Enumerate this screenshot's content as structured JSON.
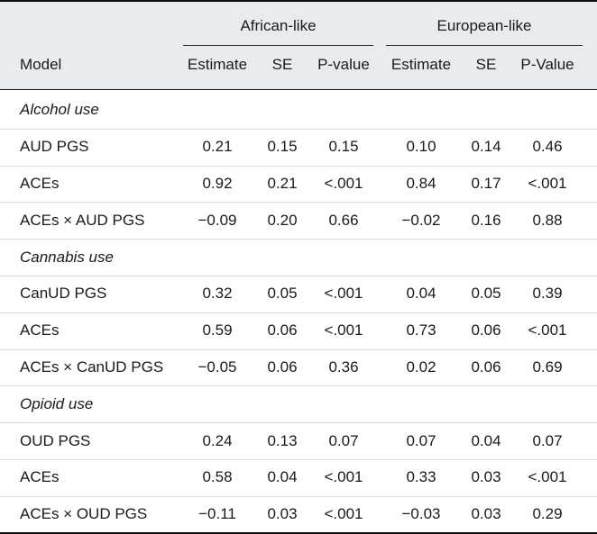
{
  "header": {
    "model_label": "Model",
    "groups": [
      {
        "label": "African-like",
        "cols": [
          "Estimate",
          "SE",
          "P-value"
        ]
      },
      {
        "label": "European-like",
        "cols": [
          "Estimate",
          "SE",
          "P-Value"
        ]
      }
    ]
  },
  "rows": [
    {
      "type": "section",
      "label": "Alcohol use"
    },
    {
      "type": "data",
      "model": "AUD PGS",
      "cells": [
        "0.21",
        "0.15",
        "0.15",
        "0.10",
        "0.14",
        "0.46"
      ]
    },
    {
      "type": "data",
      "model": "ACEs",
      "cells": [
        "0.92",
        "0.21",
        "<.001",
        "0.84",
        "0.17",
        "<.001"
      ]
    },
    {
      "type": "data",
      "model": "ACEs × AUD PGS",
      "cells": [
        "−0.09",
        "0.20",
        "0.66",
        "−0.02",
        "0.16",
        "0.88"
      ]
    },
    {
      "type": "section",
      "label": "Cannabis use"
    },
    {
      "type": "data",
      "model": "CanUD PGS",
      "cells": [
        "0.32",
        "0.05",
        "<.001",
        "0.04",
        "0.05",
        "0.39"
      ]
    },
    {
      "type": "data",
      "model": "ACEs",
      "cells": [
        "0.59",
        "0.06",
        "<.001",
        "0.73",
        "0.06",
        "<.001"
      ]
    },
    {
      "type": "data",
      "model": "ACEs × CanUD PGS",
      "cells": [
        "−0.05",
        "0.06",
        "0.36",
        "0.02",
        "0.06",
        "0.69"
      ]
    },
    {
      "type": "section",
      "label": "Opioid use"
    },
    {
      "type": "data",
      "model": "OUD PGS",
      "cells": [
        "0.24",
        "0.13",
        "0.07",
        "0.07",
        "0.04",
        "0.07"
      ]
    },
    {
      "type": "data",
      "model": "ACEs",
      "cells": [
        "0.58",
        "0.04",
        "<.001",
        "0.33",
        "0.03",
        "<.001"
      ]
    },
    {
      "type": "data",
      "model": "ACEs × OUD PGS",
      "cells": [
        "−0.11",
        "0.03",
        "<.001",
        "−0.03",
        "0.03",
        "0.29"
      ]
    }
  ]
}
